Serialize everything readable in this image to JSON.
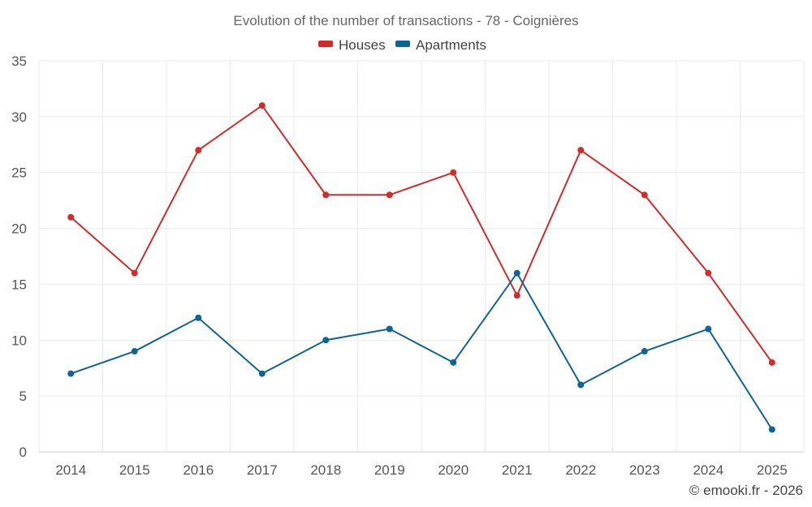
{
  "chart_data": {
    "type": "line",
    "title": "Evolution of the number of transactions - 78 - Coignières",
    "categories": [
      "2014",
      "2015",
      "2016",
      "2017",
      "2018",
      "2019",
      "2020",
      "2021",
      "2022",
      "2023",
      "2024",
      "2025"
    ],
    "series": [
      {
        "name": "Houses",
        "color": "#d42a2a",
        "values": [
          21,
          16,
          27,
          31,
          23,
          23,
          25,
          14,
          27,
          23,
          16,
          8
        ]
      },
      {
        "name": "Apartments",
        "color": "#0f6496",
        "values": [
          7,
          9,
          12,
          7,
          10,
          11,
          8,
          16,
          6,
          9,
          11,
          2
        ]
      }
    ],
    "ylim": [
      0,
      35
    ],
    "yticks": [
      0,
      5,
      10,
      15,
      20,
      25,
      30,
      35
    ],
    "xlabel": "",
    "ylabel": "",
    "grid": true,
    "legend_position": "top-center"
  },
  "credit": "© emooki.fr - 2026"
}
